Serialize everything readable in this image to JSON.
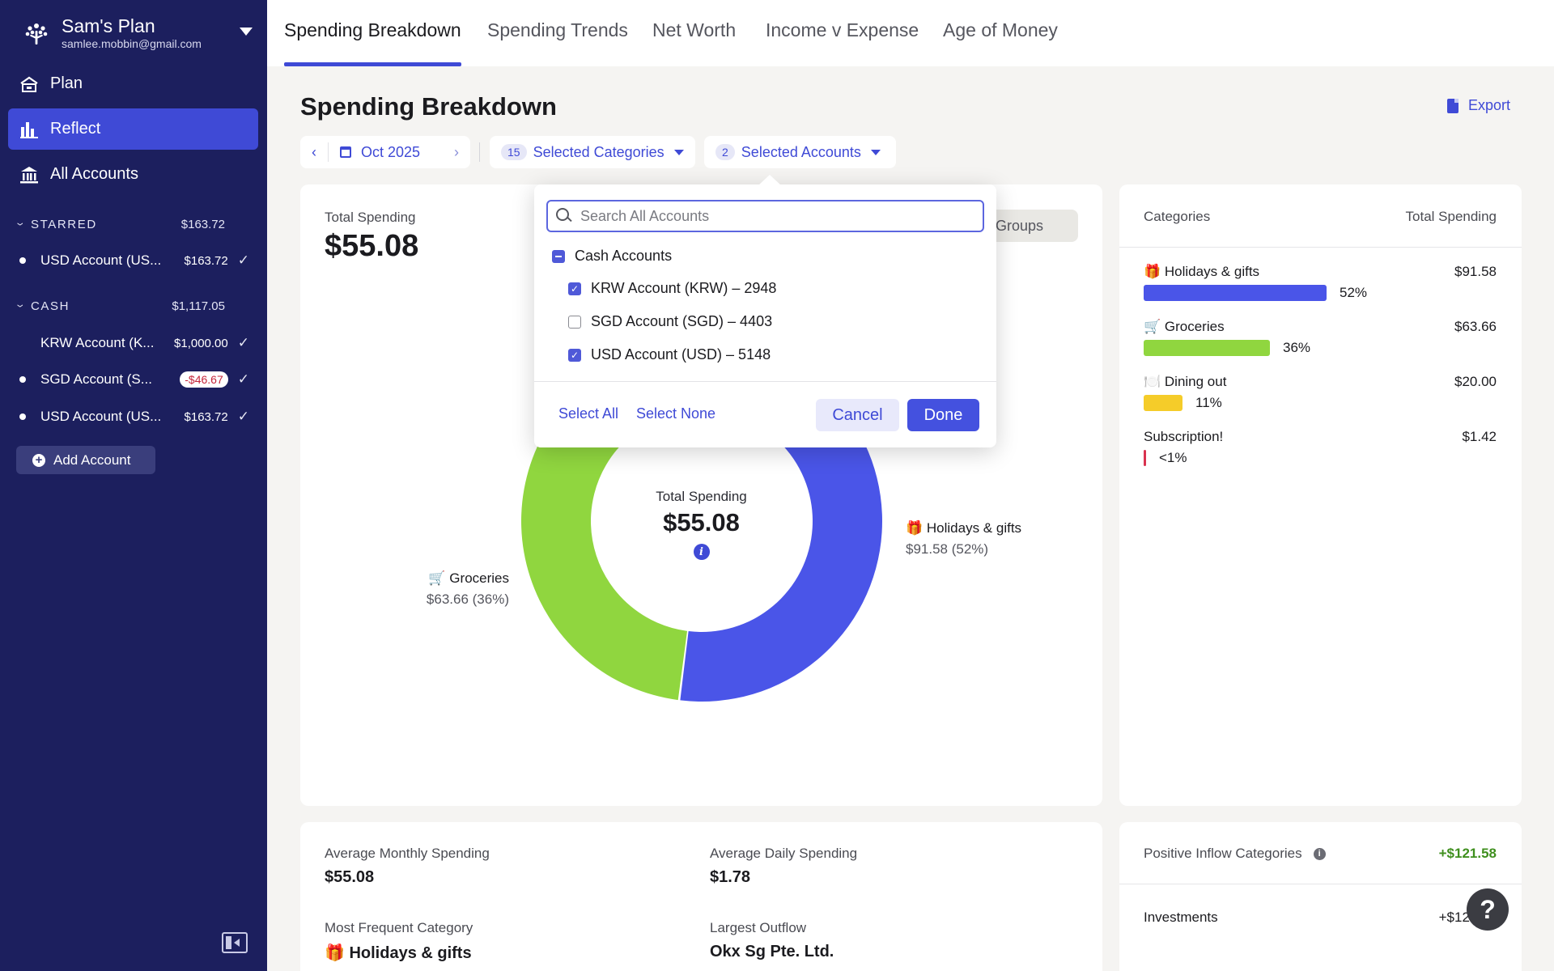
{
  "sidebar": {
    "plan_name": "Sam's Plan",
    "plan_email": "samlee.mobbin@gmail.com",
    "nav": [
      {
        "label": "Plan",
        "icon": "plan-icon"
      },
      {
        "label": "Reflect",
        "icon": "bar-chart-icon",
        "active": true
      },
      {
        "label": "All Accounts",
        "icon": "bank-icon"
      }
    ],
    "starred": {
      "label": "STARRED",
      "total": "$163.72",
      "accounts": [
        {
          "name": "USD Account (US...",
          "balance": "$163.72"
        }
      ]
    },
    "cash": {
      "label": "CASH",
      "total": "$1,117.05",
      "accounts": [
        {
          "name": "KRW Account (K...",
          "balance": "$1,000.00"
        },
        {
          "name": "SGD Account (S...",
          "balance": "-$46.67"
        },
        {
          "name": "USD Account (US...",
          "balance": "$163.72"
        }
      ]
    },
    "add_account_label": "Add Account"
  },
  "tabs": [
    "Spending Breakdown",
    "Spending Trends",
    "Net Worth",
    "Income v Expense",
    "Age of Money"
  ],
  "page": {
    "title": "Spending Breakdown",
    "export_label": "Export"
  },
  "filters": {
    "month": "Oct 2025",
    "categories_count": "15",
    "categories_label": "Selected Categories",
    "accounts_count": "2",
    "accounts_label": "Selected Accounts"
  },
  "main": {
    "total_label": "Total Spending",
    "total_value": "$55.08",
    "groups_label": "Groups",
    "center_label": "Total Spending",
    "center_value": "$55.08",
    "slice_holidays_name": "🎁 Holidays & gifts",
    "slice_holidays_value": "$91.58 (52%)",
    "slice_groceries_name": "🛒 Groceries",
    "slice_groceries_value": "$63.66 (36%)"
  },
  "chart_data": {
    "type": "pie",
    "title": "Total Spending",
    "center_value": "$55.08",
    "slices": [
      {
        "label": "Holidays & gifts",
        "value": 91.58,
        "percent": 52,
        "color": "#4a55e8"
      },
      {
        "label": "Groceries",
        "value": 63.66,
        "percent": 36,
        "color": "#90d63f"
      },
      {
        "label": "Dining out",
        "value": 20.0,
        "percent": 11,
        "color": "#f5cc29"
      },
      {
        "label": "Subscription!",
        "value": 1.42,
        "percent": 1,
        "color": "#d9324f"
      }
    ]
  },
  "side": {
    "col_categories": "Categories",
    "col_total": "Total Spending",
    "rows": [
      {
        "name": "🎁 Holidays & gifts",
        "amount": "$91.58",
        "pct": "52%",
        "fraction": 0.52,
        "color": "#4a55e8"
      },
      {
        "name": "🛒 Groceries",
        "amount": "$63.66",
        "pct": "36%",
        "fraction": 0.36,
        "color": "#90d63f"
      },
      {
        "name": "🍽️ Dining out",
        "amount": "$20.00",
        "pct": "11%",
        "fraction": 0.11,
        "color": "#f5cc29"
      },
      {
        "name": "Subscription!",
        "amount": "$1.42",
        "pct": "<1%",
        "fraction": 0.008,
        "color": "#d9324f"
      }
    ]
  },
  "stats": {
    "avg_monthly_label": "Average Monthly Spending",
    "avg_monthly_value": "$55.08",
    "avg_daily_label": "Average Daily Spending",
    "avg_daily_value": "$1.78",
    "frequent_label": "Most Frequent Category",
    "frequent_value": "🎁 Holidays & gifts",
    "largest_label": "Largest Outflow",
    "largest_value": "Okx Sg Pte. Ltd."
  },
  "inflow": {
    "label": "Positive Inflow Categories",
    "value": "+$121.58",
    "row_name": "Investments",
    "row_value": "+$121.58"
  },
  "popover": {
    "search_placeholder": "Search All Accounts",
    "group_label": "Cash Accounts",
    "accounts": [
      {
        "label": "KRW Account (KRW) – 2948",
        "checked": true
      },
      {
        "label": "SGD Account (SGD) – 4403",
        "checked": false
      },
      {
        "label": "USD Account (USD) – 5148",
        "checked": true
      }
    ],
    "select_all": "Select All",
    "select_none": "Select None",
    "cancel": "Cancel",
    "done": "Done"
  },
  "help_label": "?"
}
